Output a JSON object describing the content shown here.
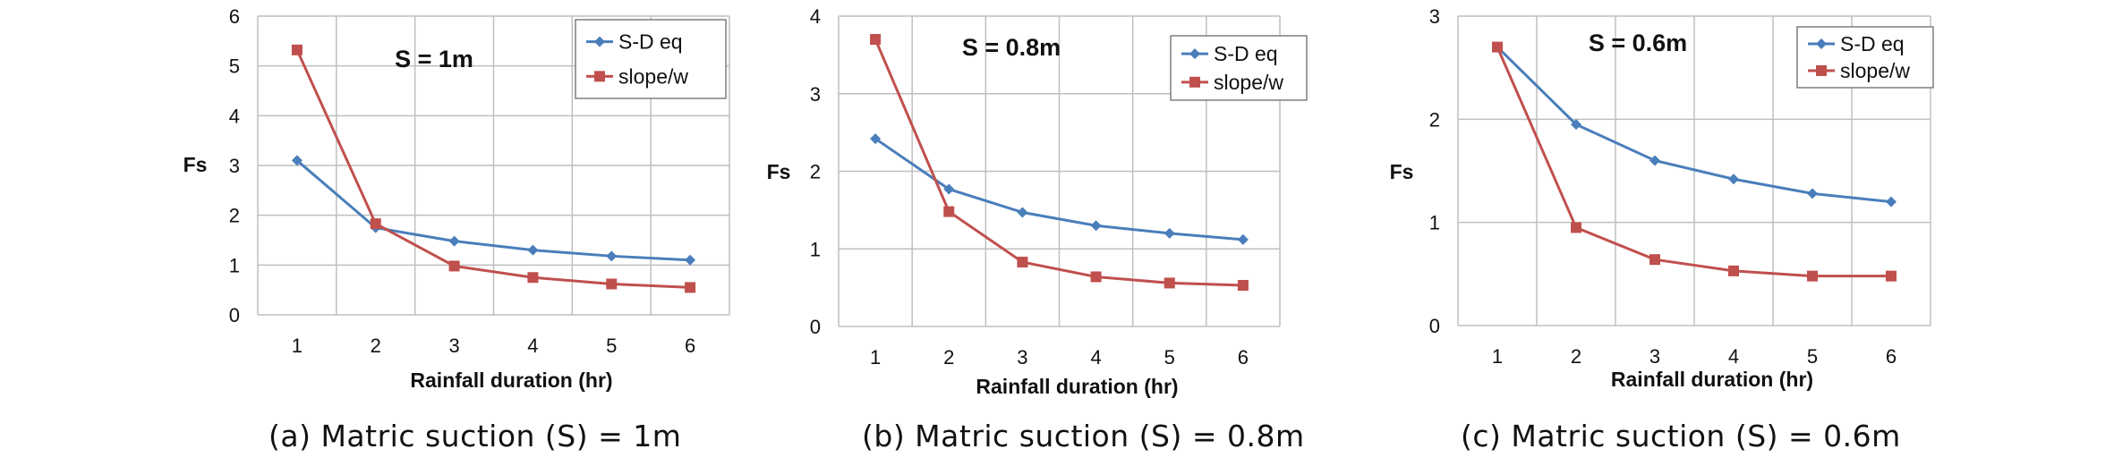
{
  "chart_data": [
    {
      "type": "line",
      "annotation": "S = 1m",
      "xlabel": "Rainfall duration (hr)",
      "ylabel": "Fs",
      "x": [
        1,
        2,
        3,
        4,
        5,
        6
      ],
      "xticks": [
        "1",
        "2",
        "3",
        "4",
        "5",
        "6"
      ],
      "yticks": [
        "0",
        "1",
        "2",
        "3",
        "4",
        "5",
        "6"
      ],
      "ylim": [
        0,
        6
      ],
      "grid": true,
      "legend_position": "top-right",
      "series": [
        {
          "name": "S-D eq",
          "color": "#4a7ebb",
          "marker": "diamond",
          "values": [
            3.1,
            1.75,
            1.48,
            1.3,
            1.18,
            1.1
          ]
        },
        {
          "name": "slope/w",
          "color": "#c0504d",
          "marker": "square",
          "values": [
            5.32,
            1.83,
            0.98,
            0.75,
            0.62,
            0.55
          ]
        }
      ],
      "caption": "(a) Matric suction (S) = 1m"
    },
    {
      "type": "line",
      "annotation": "S = 0.8m",
      "xlabel": "Rainfall duration (hr)",
      "ylabel": "Fs",
      "x": [
        1,
        2,
        3,
        4,
        5,
        6
      ],
      "xticks": [
        "1",
        "2",
        "3",
        "4",
        "5",
        "6"
      ],
      "yticks": [
        "0",
        "1",
        "2",
        "3",
        "4"
      ],
      "ylim": [
        0,
        4
      ],
      "grid": true,
      "legend_position": "top-right",
      "series": [
        {
          "name": "S-D eq",
          "color": "#4a7ebb",
          "marker": "diamond",
          "values": [
            2.42,
            1.77,
            1.47,
            1.3,
            1.2,
            1.12
          ]
        },
        {
          "name": "slope/w",
          "color": "#c0504d",
          "marker": "square",
          "values": [
            3.7,
            1.48,
            0.83,
            0.64,
            0.56,
            0.53
          ]
        }
      ],
      "caption": "(b) Matric suction (S) = 0.8m"
    },
    {
      "type": "line",
      "annotation": "S = 0.6m",
      "xlabel": "Rainfall duration (hr)",
      "ylabel": "Fs",
      "x": [
        1,
        2,
        3,
        4,
        5,
        6
      ],
      "xticks": [
        "1",
        "2",
        "3",
        "4",
        "5",
        "6"
      ],
      "yticks": [
        "0",
        "1",
        "2",
        "3"
      ],
      "ylim": [
        0,
        3
      ],
      "grid": true,
      "legend_position": "top-right",
      "series": [
        {
          "name": "S-D eq",
          "color": "#4a7ebb",
          "marker": "diamond",
          "values": [
            2.7,
            1.95,
            1.6,
            1.42,
            1.28,
            1.2
          ]
        },
        {
          "name": "slope/w",
          "color": "#c0504d",
          "marker": "square",
          "values": [
            2.7,
            0.95,
            0.64,
            0.53,
            0.48,
            0.48
          ]
        }
      ],
      "caption": "(c) Matric suction (S) = 0.6m"
    }
  ]
}
